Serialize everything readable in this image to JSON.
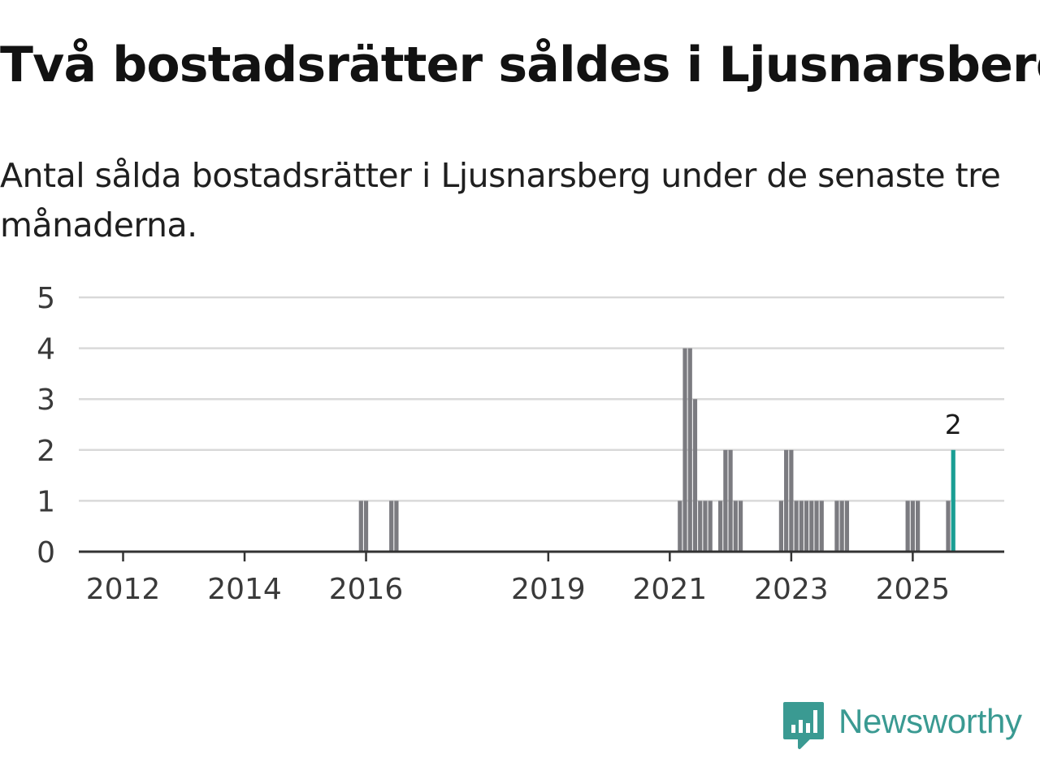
{
  "title": "Två bostadsrätter såldes i Ljusnarsberg",
  "subtitle": "Antal sålda bostadsrätter i Ljusnarsberg under de senaste tre månaderna.",
  "brand": {
    "name": "Newsworthy",
    "logo_icon": "bar-chart-speech-bubble-icon",
    "color": "#3a9a92"
  },
  "colors": {
    "bar": "#7b7b80",
    "highlight": "#1a9e94",
    "grid": "#d9d9d9",
    "axis": "#333333",
    "tick_text": "#3a3a3a"
  },
  "chart_data": {
    "type": "bar",
    "title": "Två bostadsrätter såldes i Ljusnarsberg",
    "subtitle": "Antal sålda bostadsrätter i Ljusnarsberg under de senaste tre månaderna.",
    "xlabel": "",
    "ylabel": "",
    "x_unit": "month",
    "ylim": [
      0,
      5
    ],
    "yticks": [
      0,
      1,
      2,
      3,
      4,
      5
    ],
    "xticks": [
      2012,
      2014,
      2016,
      2019,
      2021,
      2023,
      2025
    ],
    "grid": true,
    "series": [
      {
        "name": "Sålda bostadsrätter",
        "values": [
          {
            "x": "2015-12",
            "y": 1
          },
          {
            "x": "2016-01",
            "y": 1
          },
          {
            "x": "2016-06",
            "y": 1
          },
          {
            "x": "2016-07",
            "y": 1
          },
          {
            "x": "2021-03",
            "y": 1
          },
          {
            "x": "2021-04",
            "y": 4
          },
          {
            "x": "2021-05",
            "y": 4
          },
          {
            "x": "2021-06",
            "y": 3
          },
          {
            "x": "2021-07",
            "y": 1
          },
          {
            "x": "2021-08",
            "y": 1
          },
          {
            "x": "2021-09",
            "y": 1
          },
          {
            "x": "2021-11",
            "y": 1
          },
          {
            "x": "2021-12",
            "y": 2
          },
          {
            "x": "2022-01",
            "y": 2
          },
          {
            "x": "2022-02",
            "y": 1
          },
          {
            "x": "2022-03",
            "y": 1
          },
          {
            "x": "2022-11",
            "y": 1
          },
          {
            "x": "2022-12",
            "y": 2
          },
          {
            "x": "2023-01",
            "y": 2
          },
          {
            "x": "2023-02",
            "y": 1
          },
          {
            "x": "2023-03",
            "y": 1
          },
          {
            "x": "2023-04",
            "y": 1
          },
          {
            "x": "2023-05",
            "y": 1
          },
          {
            "x": "2023-06",
            "y": 1
          },
          {
            "x": "2023-07",
            "y": 1
          },
          {
            "x": "2023-10",
            "y": 1
          },
          {
            "x": "2023-11",
            "y": 1
          },
          {
            "x": "2023-12",
            "y": 1
          },
          {
            "x": "2024-12",
            "y": 1
          },
          {
            "x": "2025-01",
            "y": 1
          },
          {
            "x": "2025-02",
            "y": 1
          },
          {
            "x": "2025-08",
            "y": 1
          },
          {
            "x": "2025-09",
            "y": 2,
            "highlight": true,
            "label": "2"
          }
        ]
      }
    ]
  }
}
